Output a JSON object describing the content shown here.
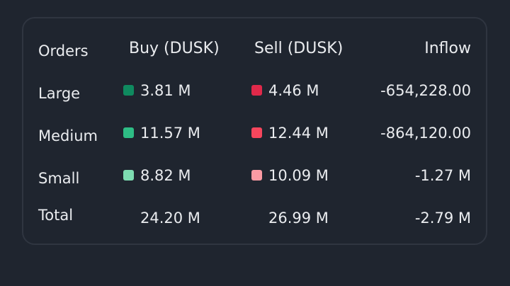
{
  "headers": {
    "orders": "Orders",
    "buy": "Buy (DUSK)",
    "sell": "Sell (DUSK)",
    "inflow": "Inflow"
  },
  "rows": [
    {
      "label": "Large",
      "buy": "3.81 M",
      "sell": "4.46 M",
      "inflow": "-654,228.00",
      "buy_color": "#0f8a5f",
      "sell_color": "#e0294a"
    },
    {
      "label": "Medium",
      "buy": "11.57 M",
      "sell": "12.44 M",
      "inflow": "-864,120.00",
      "buy_color": "#2ebd85",
      "sell_color": "#f6465d"
    },
    {
      "label": "Small",
      "buy": "8.82 M",
      "sell": "10.09 M",
      "inflow": "-1.27 M",
      "buy_color": "#7ddcb1",
      "sell_color": "#fb9aa3"
    }
  ],
  "total": {
    "label": "Total",
    "buy": "24.20 M",
    "sell": "26.99 M",
    "inflow": "-2.79 M"
  },
  "colors": {
    "background": "#1f252f",
    "border": "#2f3540",
    "text": "#eaecef"
  }
}
